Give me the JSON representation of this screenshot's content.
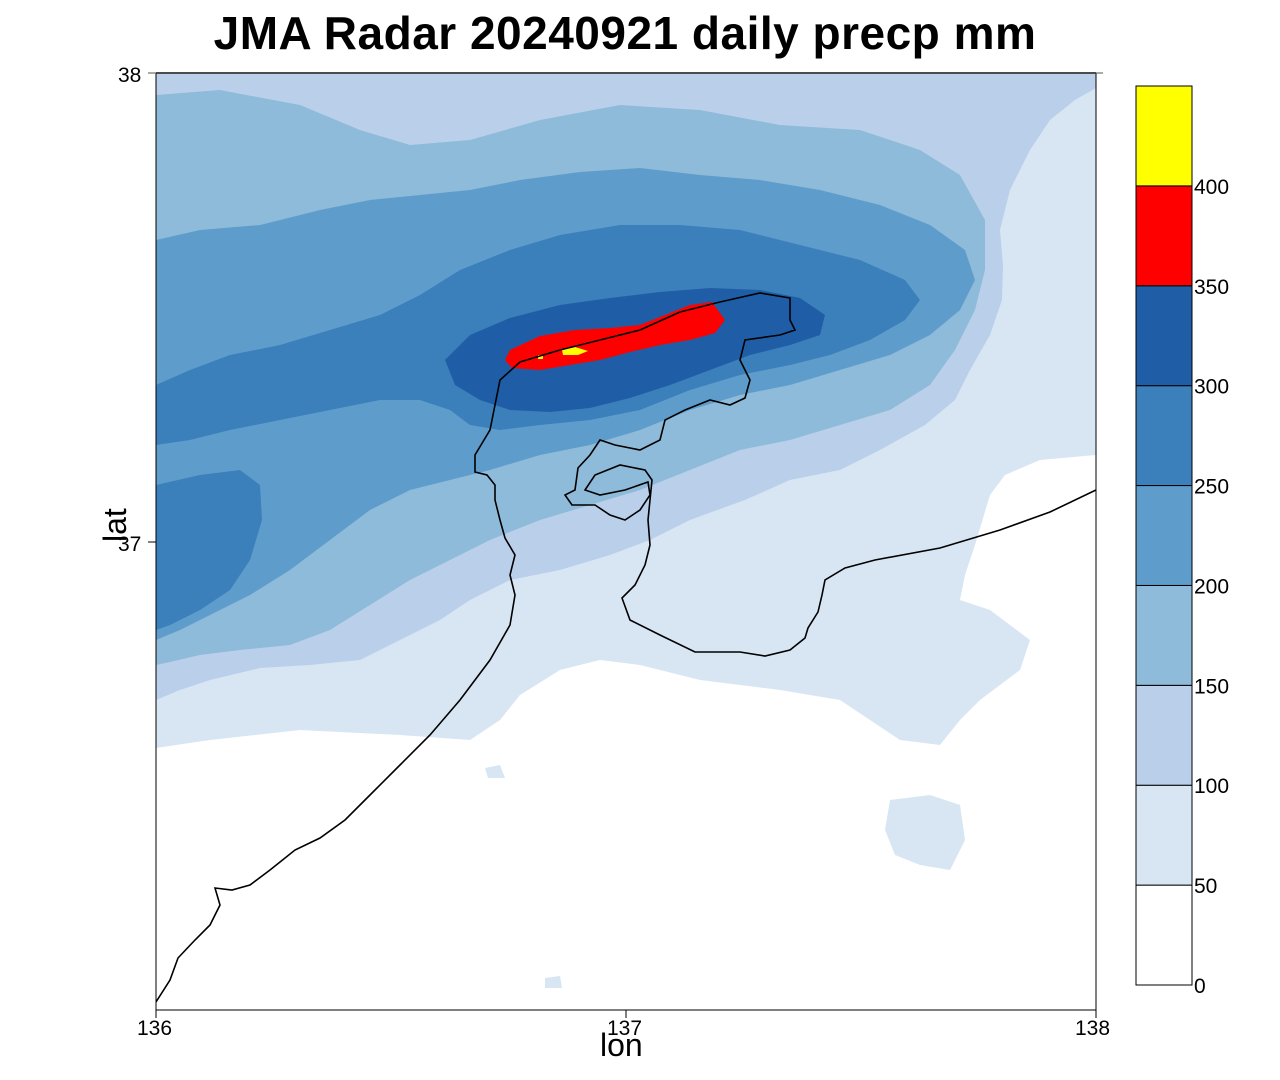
{
  "title": "JMA Radar 20240921 daily precp mm",
  "axes": {
    "xlabel": "lon",
    "ylabel": "lat",
    "x_ticks": [
      "136",
      "137",
      "138"
    ],
    "y_ticks": [
      "38",
      "37"
    ],
    "xlim": [
      136,
      138
    ],
    "ylim": [
      36,
      38
    ]
  },
  "colorbar": {
    "levels": [
      "0",
      "50",
      "100",
      "150",
      "200",
      "250",
      "300",
      "350",
      "400"
    ],
    "colors": [
      "#ffffff",
      "#d8e6f4",
      "#bad0ea",
      "#8fbbda",
      "#5e9dcb",
      "#3b7fbb",
      "#1f5ea6",
      "#ff0000",
      "#ffff00"
    ]
  },
  "chart_data": {
    "type": "heatmap",
    "title": "JMA Radar 20240921 daily precp mm",
    "xlabel": "lon",
    "ylabel": "lat",
    "xlim": [
      136,
      138
    ],
    "ylim": [
      36,
      38
    ],
    "units": "mm",
    "levels": [
      0,
      50,
      100,
      150,
      200,
      250,
      300,
      350,
      400
    ],
    "max_region": "Noto Peninsula north coast, 350-400+ mm near 136.9-137.2E, 37.4N"
  }
}
